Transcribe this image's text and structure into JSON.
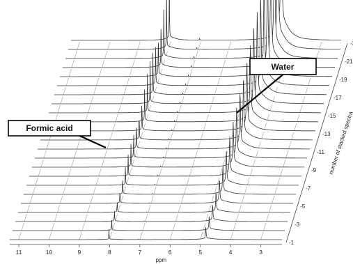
{
  "chart_data": {
    "type": "line",
    "subtype": "stacked-3d-nmr-spectra",
    "title": "",
    "xlabel": "ppm",
    "zlabel": "number of stacked spectra",
    "x_axis_reversed": true,
    "xlim": [
      11.3,
      2.3
    ],
    "x_ticks": [
      "11",
      "10",
      "9",
      "8",
      "7",
      "6",
      "5",
      "4",
      "3"
    ],
    "z_ticks": [
      "1",
      "3",
      "5",
      "7",
      "9",
      "11",
      "13",
      "15",
      "17",
      "19",
      "21",
      "23"
    ],
    "n_spectra": 23,
    "grid": true,
    "peaks": [
      {
        "name": "formic-acid",
        "position_ppm_first": 8.02,
        "position_ppm_last": 8.05,
        "first_height": 0.45,
        "last_height": 2.8
      },
      {
        "name": "small-shoulder",
        "position_ppm_first": 7.05,
        "position_ppm_last": 7.05,
        "first_height": 0.02,
        "last_height": 0.08
      },
      {
        "name": "water",
        "position_ppm_first": 4.82,
        "position_ppm_last": 4.35,
        "first_height": 0.5,
        "last_height": 6.0
      }
    ],
    "annotations": [
      {
        "label": "Formic acid",
        "target": "formic-acid"
      },
      {
        "label": "Water",
        "target": "water"
      }
    ]
  }
}
